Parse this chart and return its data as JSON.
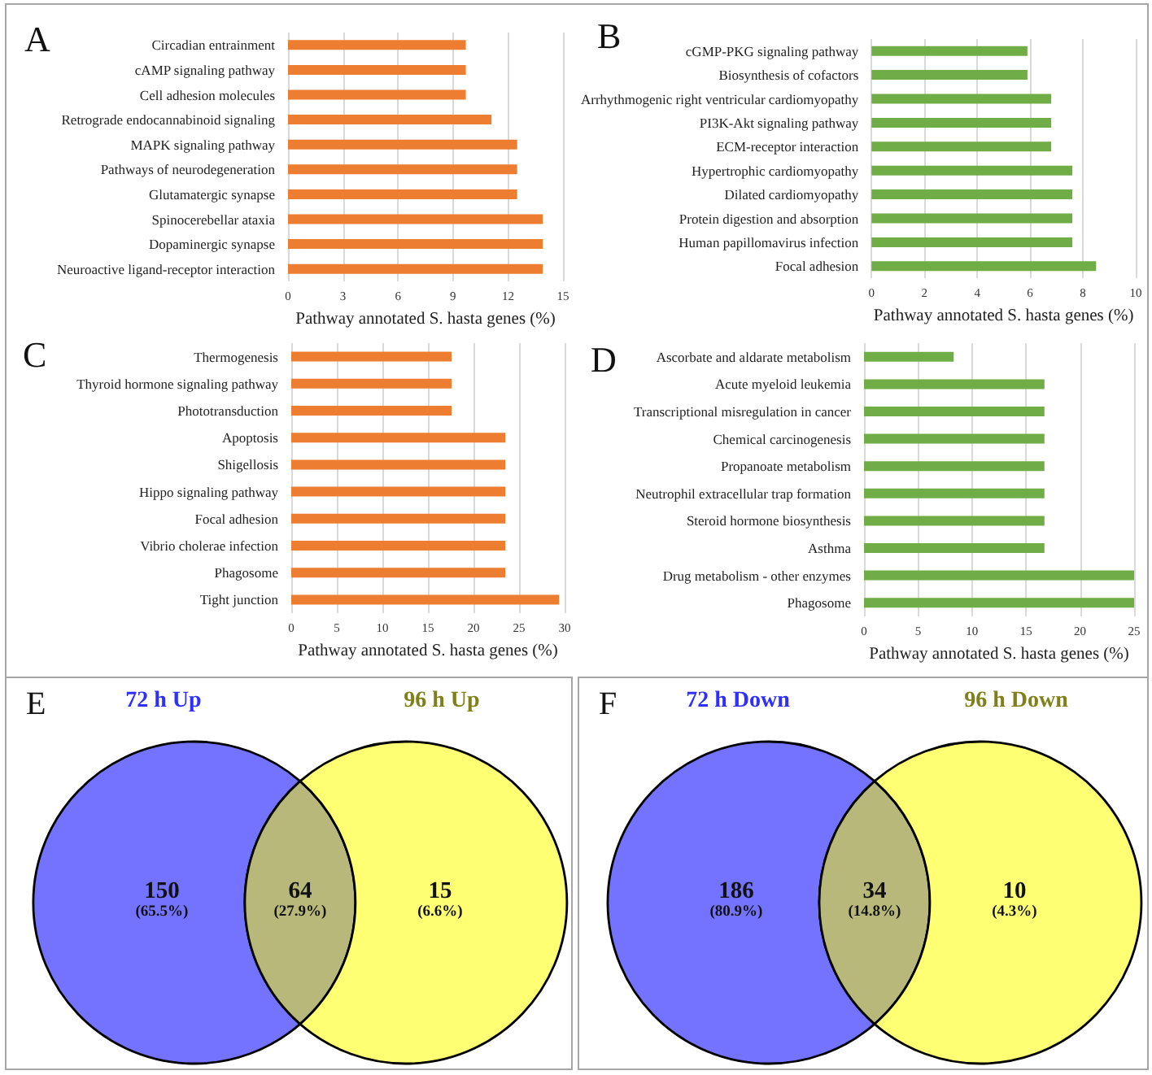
{
  "chart_data": [
    {
      "type": "bar",
      "orientation": "horizontal",
      "title": "A",
      "categories": [
        "Circadian entrainment",
        "cAMP signaling pathway",
        "Cell adhesion molecules",
        "Retrograde endocannabinoid signaling",
        "MAPK signaling pathway",
        "Pathways of neurodegeneration",
        "Glutamatergic synapse",
        "Spinocerebellar ataxia",
        "Dopaminergic synapse",
        "Neuroactive ligand-receptor interaction"
      ],
      "values": [
        9.7,
        9.7,
        9.7,
        11.1,
        12.5,
        12.5,
        12.5,
        13.9,
        13.9,
        13.9
      ],
      "color": "#ed7d31",
      "xlabel": "Pathway annotated S. hasta genes (%)",
      "xlim": [
        0,
        15
      ],
      "xticks": [
        0,
        3,
        6,
        9,
        12,
        15
      ],
      "grid": "x"
    },
    {
      "type": "bar",
      "orientation": "horizontal",
      "title": "B",
      "categories": [
        "cGMP-PKG signaling pathway",
        "Biosynthesis of cofactors",
        "Arrhythmogenic right ventricular cardiomyopathy",
        "PI3K-Akt signaling pathway",
        "ECM-receptor interaction",
        "Hypertrophic cardiomyopathy",
        "Dilated cardiomyopathy",
        "Protein digestion and absorption",
        "Human papillomavirus infection",
        "Focal adhesion"
      ],
      "values": [
        5.9,
        5.9,
        6.8,
        6.8,
        6.8,
        7.6,
        7.6,
        7.6,
        7.6,
        8.5
      ],
      "color": "#70ad47",
      "xlabel": "Pathway annotated S. hasta genes (%)",
      "xlim": [
        0,
        10
      ],
      "xticks": [
        0,
        2,
        4,
        6,
        8,
        10
      ],
      "grid": "x"
    },
    {
      "type": "bar",
      "orientation": "horizontal",
      "title": "C",
      "categories": [
        "Thermogenesis",
        "Thyroid hormone signaling pathway",
        "Phototransduction",
        "Apoptosis",
        "Shigellosis",
        "Hippo signaling pathway",
        "Focal adhesion",
        "Vibrio cholerae infection",
        "Phagosome",
        "Tight junction"
      ],
      "values": [
        17.6,
        17.6,
        17.6,
        23.5,
        23.5,
        23.5,
        23.5,
        23.5,
        23.5,
        29.4
      ],
      "color": "#ed7d31",
      "xlabel": "Pathway annotated S. hasta genes (%)",
      "xlim": [
        0,
        30
      ],
      "xticks": [
        0,
        5,
        10,
        15,
        20,
        25,
        30
      ],
      "grid": "x"
    },
    {
      "type": "bar",
      "orientation": "horizontal",
      "title": "D",
      "categories": [
        "Ascorbate and aldarate metabolism",
        "Acute myeloid leukemia",
        "Transcriptional misregulation in cancer",
        "Chemical carcinogenesis",
        "Propanoate metabolism",
        "Neutrophil extracellular trap formation",
        "Steroid hormone biosynthesis",
        "Asthma",
        "Drug metabolism - other enzymes",
        "Phagosome"
      ],
      "values": [
        8.3,
        16.7,
        16.7,
        16.7,
        16.7,
        16.7,
        16.7,
        16.7,
        25.0,
        25.0
      ],
      "color": "#70ad47",
      "xlabel": "Pathway annotated S. hasta genes (%)",
      "xlim": [
        0,
        25
      ],
      "xticks": [
        0,
        5,
        10,
        15,
        20,
        25
      ],
      "grid": "x"
    },
    {
      "type": "other",
      "title": "E",
      "series": [
        {
          "name": "72 h Up"
        },
        {
          "name": "96 h Up"
        }
      ],
      "colors": [
        "#7373ff",
        "#b8b87a",
        "#ffff73"
      ],
      "annotations": [
        "150",
        "(65.5%)",
        "64",
        "(27.9%)",
        "15",
        "(6.6%)"
      ]
    },
    {
      "type": "other",
      "title": "F",
      "series": [
        {
          "name": "72 h Down"
        },
        {
          "name": "96 h Down"
        }
      ],
      "colors": [
        "#7373ff",
        "#b8b87a",
        "#ffff73"
      ],
      "annotations": [
        "186",
        "(80.9%)",
        "34",
        "(14.8%)",
        "10",
        "(4.3%)"
      ]
    }
  ]
}
